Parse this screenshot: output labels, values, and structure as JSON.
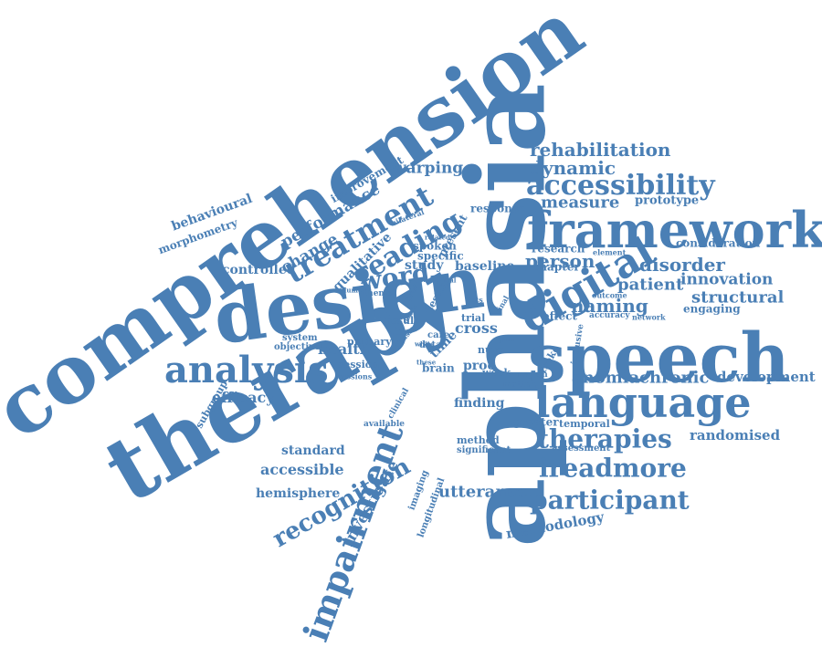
{
  "color": "#4a7fb5",
  "words": [
    "comprehension",
    "therapy",
    "design",
    "aphasia",
    "speech",
    "framework",
    "language",
    "digital",
    "analysis",
    "treatment",
    "reading",
    "word",
    "accessibility",
    "rehabilitation",
    "dynamic",
    "warping",
    "measure",
    "prototype",
    "therapies",
    "ireadmore",
    "participant",
    "recognition",
    "impairment",
    "investigate",
    "utterance",
    "methodology",
    "randomised",
    "development",
    "chronic",
    "anomia",
    "naming",
    "patient",
    "innovation",
    "structural",
    "disorder",
    "person",
    "chapter",
    "consideration",
    "engaging",
    "performance",
    "change",
    "behavioural",
    "morphometry",
    "improvement",
    "qualitative",
    "controlled",
    "efficacy",
    "standard",
    "accessible",
    "hemisphere",
    "health",
    "study",
    "baseline",
    "cross",
    "proc",
    "week",
    "brain",
    "finding",
    "method",
    "significant",
    "effect",
    "greater",
    "temporal",
    "assessment",
    "response",
    "research",
    "element",
    "outcome",
    "network",
    "accuracy",
    "spoken",
    "specific",
    "present",
    "testing",
    "result",
    "primary",
    "session",
    "objective",
    "system",
    "subgroup",
    "imaging",
    "longitudinal",
    "data",
    "care",
    "time",
    "nuva",
    "trial",
    "region",
    "stroke",
    "matter",
    "inclusive",
    "available",
    "clinical",
    "bilateral",
    "related",
    "volume",
    "theme",
    "gain",
    "final",
    "lists",
    "these",
    "lexical",
    "white",
    "aphasia",
    "usage",
    "sessions",
    "brief"
  ]
}
